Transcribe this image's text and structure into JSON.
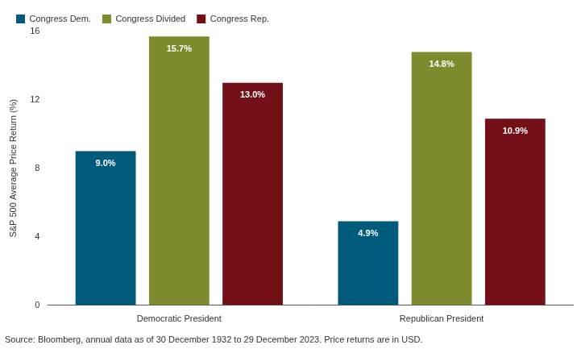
{
  "chart_data": {
    "type": "bar",
    "ylabel": "S&P 500 Average Price Return (%)",
    "categories": [
      "Democratic President",
      "Republican President"
    ],
    "series": [
      {
        "name": "Congress Dem.",
        "color": "#005a7c",
        "values": [
          9.0,
          4.9
        ],
        "value_labels": [
          "9.0%",
          "4.9%"
        ]
      },
      {
        "name": "Congress Divided",
        "color": "#7f8a2f",
        "values": [
          15.7,
          14.8
        ],
        "value_labels": [
          "15.7%",
          "14.8%"
        ]
      },
      {
        "name": "Congress Rep.",
        "color": "#730f17",
        "values": [
          13.0,
          10.9
        ],
        "value_labels": [
          "13.0%",
          "10.9%"
        ]
      }
    ],
    "ylim": [
      0,
      16
    ],
    "yticks": [
      0,
      4,
      8,
      12,
      16
    ],
    "grid": false,
    "legend": "top-left",
    "data_labels": true,
    "source": "Source: Bloomberg, annual data as of 30 December 1932 to 29 December 2023. Price returns are in USD."
  }
}
